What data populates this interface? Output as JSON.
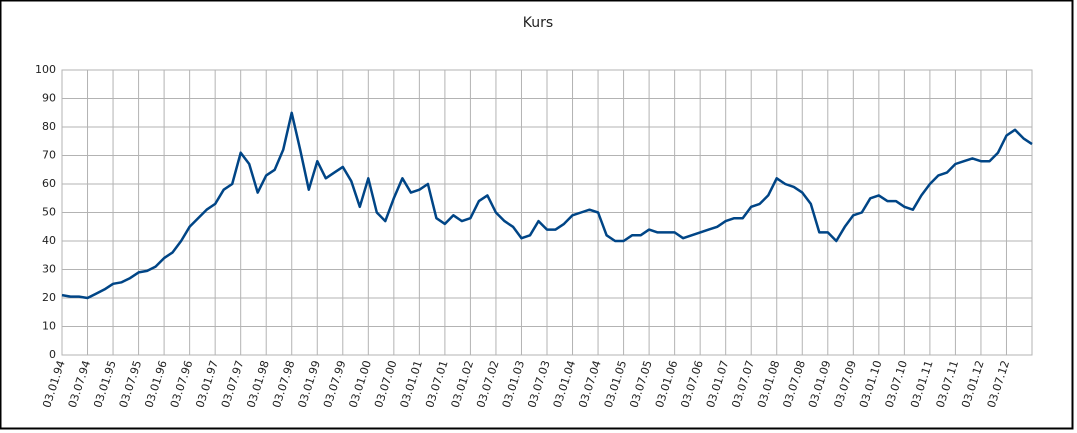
{
  "chart_data": {
    "type": "line",
    "title": "Kurs",
    "categories": [
      "03.01.94",
      null,
      null,
      "03.07.94",
      null,
      null,
      "03.01.95",
      null,
      null,
      "03.07.95",
      null,
      null,
      "03.01.96",
      null,
      null,
      "03.07.96",
      null,
      null,
      "03.01.97",
      null,
      null,
      "03.07.97",
      null,
      null,
      "03.01.98",
      null,
      null,
      "03.07.98",
      null,
      null,
      "03.01.99",
      null,
      null,
      "03.07.99",
      null,
      null,
      "03.01.00",
      null,
      null,
      "03.07.00",
      null,
      null,
      "03.01.01",
      null,
      null,
      "03.07.01",
      null,
      null,
      "03.01.02",
      null,
      null,
      "03.07.02",
      null,
      null,
      "03.01.03",
      null,
      null,
      "03.07.03",
      null,
      null,
      "03.01.04",
      null,
      null,
      "03.07.04",
      null,
      null,
      "03.01.05",
      null,
      null,
      "03.07.05",
      null,
      null,
      "03.01.06",
      null,
      null,
      "03.07.06",
      null,
      null,
      "03.01.07",
      null,
      null,
      "03.07.07",
      null,
      null,
      "03.01.08",
      null,
      null,
      "03.07.08",
      null,
      null,
      "03.01.09",
      null,
      null,
      "03.07.09",
      null,
      null,
      "03.01.10",
      null,
      null,
      "03.07.10",
      null,
      null,
      "03.01.11",
      null,
      null,
      "03.07.11",
      null,
      null,
      "03.01.12",
      null,
      null,
      "03.07.12",
      null,
      null,
      null
    ],
    "values": [
      21,
      20.5,
      20.5,
      20,
      21.5,
      23,
      25,
      25.5,
      27,
      29,
      29.5,
      31,
      34,
      36,
      40,
      45,
      48,
      51,
      53,
      58,
      60,
      71,
      67,
      57,
      63,
      65,
      72,
      85,
      72,
      58,
      68,
      62,
      64,
      66,
      61,
      52,
      62,
      50,
      47,
      55,
      62,
      57,
      58,
      60,
      48,
      46,
      49,
      47,
      48,
      54,
      56,
      50,
      47,
      45,
      41,
      42,
      47,
      44,
      44,
      46,
      49,
      50,
      51,
      50,
      42,
      40,
      40,
      42,
      42,
      44,
      43,
      43,
      43,
      41,
      42,
      43,
      44,
      45,
      47,
      48,
      48,
      52,
      53,
      56,
      62,
      60,
      59,
      57,
      53,
      43,
      43,
      40,
      45,
      49,
      50,
      55,
      56,
      54,
      54,
      52,
      51,
      56,
      60,
      63,
      64,
      67,
      68,
      69,
      68,
      68,
      71,
      77,
      79,
      76,
      74
    ],
    "color": "#004586",
    "ylim": [
      0,
      100
    ],
    "yticks": [
      0,
      10,
      20,
      30,
      40,
      50,
      60,
      70,
      80,
      90,
      100
    ],
    "grid": true
  }
}
